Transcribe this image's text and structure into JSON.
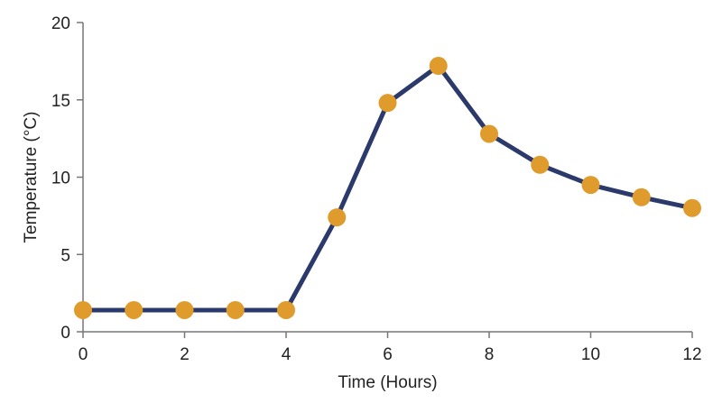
{
  "chart_data": {
    "type": "line",
    "title": "",
    "xlabel": "Time (Hours)",
    "ylabel": "Temperature (°C)",
    "xlim": [
      0,
      12
    ],
    "ylim": [
      0,
      20
    ],
    "xticks": [
      0,
      2,
      4,
      6,
      8,
      10,
      12
    ],
    "yticks": [
      0,
      5,
      10,
      15,
      20
    ],
    "xtick_labels": [
      "0",
      "2",
      "4",
      "6",
      "8",
      "10",
      "12"
    ],
    "ytick_labels": [
      "0",
      "5",
      "10",
      "15",
      "20"
    ],
    "grid": false,
    "legend": "none",
    "series": [
      {
        "line_color": "#2b3a6b",
        "marker_color": "#e09b2d",
        "x": [
          0,
          1,
          2,
          3,
          4,
          5,
          6,
          7,
          8,
          9,
          10,
          11,
          12
        ],
        "y": [
          1.4,
          1.4,
          1.4,
          1.4,
          1.4,
          7.4,
          14.8,
          17.2,
          12.8,
          10.8,
          9.5,
          8.7,
          8.0
        ]
      }
    ]
  }
}
